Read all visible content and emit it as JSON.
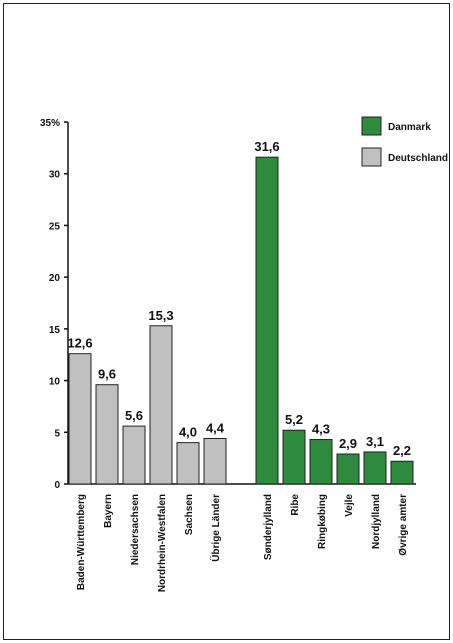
{
  "chart_data": {
    "type": "bar",
    "ylabel": "",
    "ylim": [
      0,
      35
    ],
    "y_ticks": [
      "0",
      "5",
      "10",
      "15",
      "20",
      "25",
      "30",
      "35%"
    ],
    "grid": false,
    "legend_placement": "top-right",
    "colors": {
      "Danmark": "#2e8b3e",
      "Deutschland": "#c0c0c0",
      "bar_stroke": "#222222",
      "axis": "#111111"
    },
    "series": [
      {
        "name": "Deutschland",
        "categories": [
          "Baden-Württemberg",
          "Bayern",
          "Niedersachsen",
          "Nordrhein-Westfalen",
          "Sachsen",
          "Übrige Länder"
        ],
        "values": [
          12.6,
          9.6,
          5.6,
          15.3,
          4.0,
          4.4
        ],
        "labels": [
          "12,6",
          "9,6",
          "5,6",
          "15,3",
          "4,0",
          "4,4"
        ]
      },
      {
        "name": "Danmark",
        "categories": [
          "Sønderjylland",
          "Ribe",
          "Ringkøbing",
          "Vejle",
          "Nordjylland",
          "Øvrige amter"
        ],
        "values": [
          31.6,
          5.2,
          4.3,
          2.9,
          3.1,
          2.2
        ],
        "labels": [
          "31,6",
          "5,2",
          "4,3",
          "2,9",
          "3,1",
          "2,2"
        ]
      }
    ]
  }
}
